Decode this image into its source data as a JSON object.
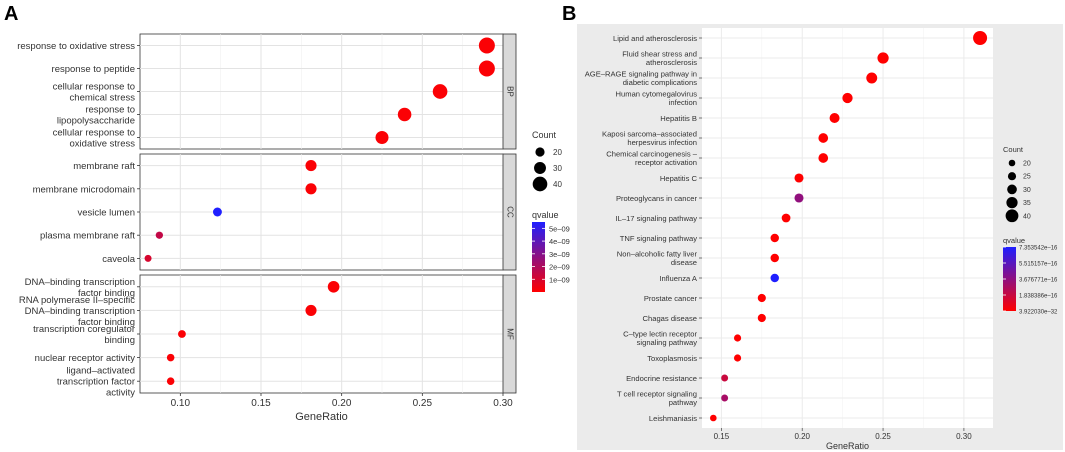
{
  "panel_labels": {
    "a": "A",
    "b": "B"
  },
  "chart_data": [
    {
      "type": "scatter",
      "panel": "A",
      "xlabel": "GeneRatio",
      "ylabel": "",
      "xlim": [
        0.075,
        0.3
      ],
      "x_ticks": [
        0.1,
        0.15,
        0.2,
        0.25,
        0.3
      ],
      "x_tick_labels": [
        "0.10",
        "0.15",
        "0.20",
        "0.25",
        "0.30"
      ],
      "facets": [
        {
          "name": "BP",
          "terms": [
            {
              "label": "response to oxidative stress",
              "x": 0.29,
              "count": 45,
              "qvalue": 1e-10
            },
            {
              "label": "response to peptide",
              "x": 0.29,
              "count": 45,
              "qvalue": 1e-10
            },
            {
              "label": "cellular response to chemical stress",
              "x": 0.261,
              "count": 40,
              "qvalue": 1e-10
            },
            {
              "label": "response to lipopolysaccharide",
              "x": 0.239,
              "count": 36,
              "qvalue": 1e-10
            },
            {
              "label": "cellular response to oxidative stress",
              "x": 0.225,
              "count": 34,
              "qvalue": 1e-10
            }
          ]
        },
        {
          "name": "CC",
          "terms": [
            {
              "label": "membrane raft",
              "x": 0.181,
              "count": 27,
              "qvalue": 1e-10
            },
            {
              "label": "membrane microdomain",
              "x": 0.181,
              "count": 27,
              "qvalue": 1e-10
            },
            {
              "label": "vesicle lumen",
              "x": 0.123,
              "count": 19,
              "qvalue": 5.5e-09
            },
            {
              "label": "plasma membrane raft",
              "x": 0.087,
              "count": 13,
              "qvalue": 1.5e-09
            },
            {
              "label": "caveola",
              "x": 0.08,
              "count": 12,
              "qvalue": 1e-09
            }
          ]
        },
        {
          "name": "MF",
          "terms": [
            {
              "label": "DNA–binding transcription factor binding",
              "x": 0.195,
              "count": 29,
              "qvalue": 1e-10
            },
            {
              "label": "RNA polymerase II–specific DNA–binding transcription factor binding",
              "x": 0.181,
              "count": 27,
              "qvalue": 1e-10
            },
            {
              "label": "transcription coregulator binding",
              "x": 0.101,
              "count": 15,
              "qvalue": 1e-10
            },
            {
              "label": "nuclear receptor activity",
              "x": 0.094,
              "count": 14,
              "qvalue": 1e-10
            },
            {
              "label": "ligand–activated transcription factor activity",
              "x": 0.094,
              "count": 14,
              "qvalue": 1e-10
            }
          ]
        }
      ],
      "size_legend": {
        "title": "Count",
        "values": [
          20,
          30,
          40
        ],
        "labels": [
          "20",
          "30",
          "40"
        ]
      },
      "color_legend": {
        "title": "qvalue",
        "range": [
          0,
          5.5e-09
        ],
        "ticks": [
          "5e–09",
          "4e–09",
          "3e–09",
          "2e–09",
          "1e–09"
        ],
        "tick_values": [
          5e-09,
          4e-09,
          3e-09,
          2e-09,
          1e-09
        ],
        "low_color": "#ff0000",
        "high_color": "#1f1fff"
      }
    },
    {
      "type": "scatter",
      "panel": "B",
      "xlabel": "GeneRatio",
      "ylabel": "",
      "xlim": [
        0.138,
        0.318
      ],
      "x_ticks": [
        0.15,
        0.2,
        0.25,
        0.3
      ],
      "x_tick_labels": [
        "0.15",
        "0.20",
        "0.25",
        "0.30"
      ],
      "terms": [
        {
          "label": "Lipid and atherosclerosis",
          "x": 0.31,
          "count": 44,
          "qvalue": 3.9e-32
        },
        {
          "label": "Fluid shear stress and atherosclerosis",
          "x": 0.25,
          "count": 35,
          "qvalue": 3.9e-32
        },
        {
          "label": "AGE–RAGE signaling pathway in diabetic complications",
          "x": 0.243,
          "count": 34,
          "qvalue": 3.9e-32
        },
        {
          "label": "Human cytomegalovirus infection",
          "x": 0.228,
          "count": 32,
          "qvalue": 3.9e-32
        },
        {
          "label": "Hepatitis B",
          "x": 0.22,
          "count": 31,
          "qvalue": 3.9e-32
        },
        {
          "label": "Kaposi sarcoma–associated herpesvirus infection",
          "x": 0.213,
          "count": 30,
          "qvalue": 3.9e-32
        },
        {
          "label": "Chemical carcinogenesis – receptor activation",
          "x": 0.213,
          "count": 30,
          "qvalue": 3.9e-32
        },
        {
          "label": "Hepatitis C",
          "x": 0.198,
          "count": 28,
          "qvalue": 3.9e-32
        },
        {
          "label": "Proteoglycans in cancer",
          "x": 0.198,
          "count": 28,
          "qvalue": 3.6e-16
        },
        {
          "label": "IL–17 signaling pathway",
          "x": 0.19,
          "count": 27,
          "qvalue": 3.9e-32
        },
        {
          "label": "TNF signaling pathway",
          "x": 0.183,
          "count": 26,
          "qvalue": 3.9e-32
        },
        {
          "label": "Non–alcoholic fatty liver disease",
          "x": 0.183,
          "count": 26,
          "qvalue": 3.9e-32
        },
        {
          "label": "Influenza A",
          "x": 0.183,
          "count": 26,
          "qvalue": 7.35e-16
        },
        {
          "label": "Prostate cancer",
          "x": 0.175,
          "count": 25,
          "qvalue": 3.9e-32
        },
        {
          "label": "Chagas disease",
          "x": 0.175,
          "count": 25,
          "qvalue": 3.9e-32
        },
        {
          "label": "C–type lectin receptor signaling pathway",
          "x": 0.16,
          "count": 22,
          "qvalue": 3.9e-32
        },
        {
          "label": "Toxoplasmosis",
          "x": 0.16,
          "count": 22,
          "qvalue": 3.9e-32
        },
        {
          "label": "Endocrine resistance",
          "x": 0.152,
          "count": 21,
          "qvalue": 1.8e-16
        },
        {
          "label": "T cell receptor signaling pathway",
          "x": 0.152,
          "count": 21,
          "qvalue": 2.9e-16
        },
        {
          "label": "Leishmaniasis",
          "x": 0.145,
          "count": 20,
          "qvalue": 3.9e-32
        }
      ],
      "size_legend": {
        "title": "Count",
        "values": [
          20,
          25,
          30,
          35,
          40
        ],
        "labels": [
          "20",
          "25",
          "30",
          "35",
          "40"
        ]
      },
      "color_legend": {
        "title": "qvalue",
        "range": [
          3.92203e-32,
          7.353542e-16
        ],
        "ticks": [
          "7.353542e–16",
          "5.515157e–16",
          "3.676771e–16",
          "1.838386e–16",
          "3.922030e–32"
        ],
        "tick_values": [
          7.353542e-16,
          5.515157e-16,
          3.676771e-16,
          1.838386e-16,
          3.92203e-32
        ],
        "low_color": "#ff0000",
        "high_color": "#1f1fff"
      }
    }
  ]
}
